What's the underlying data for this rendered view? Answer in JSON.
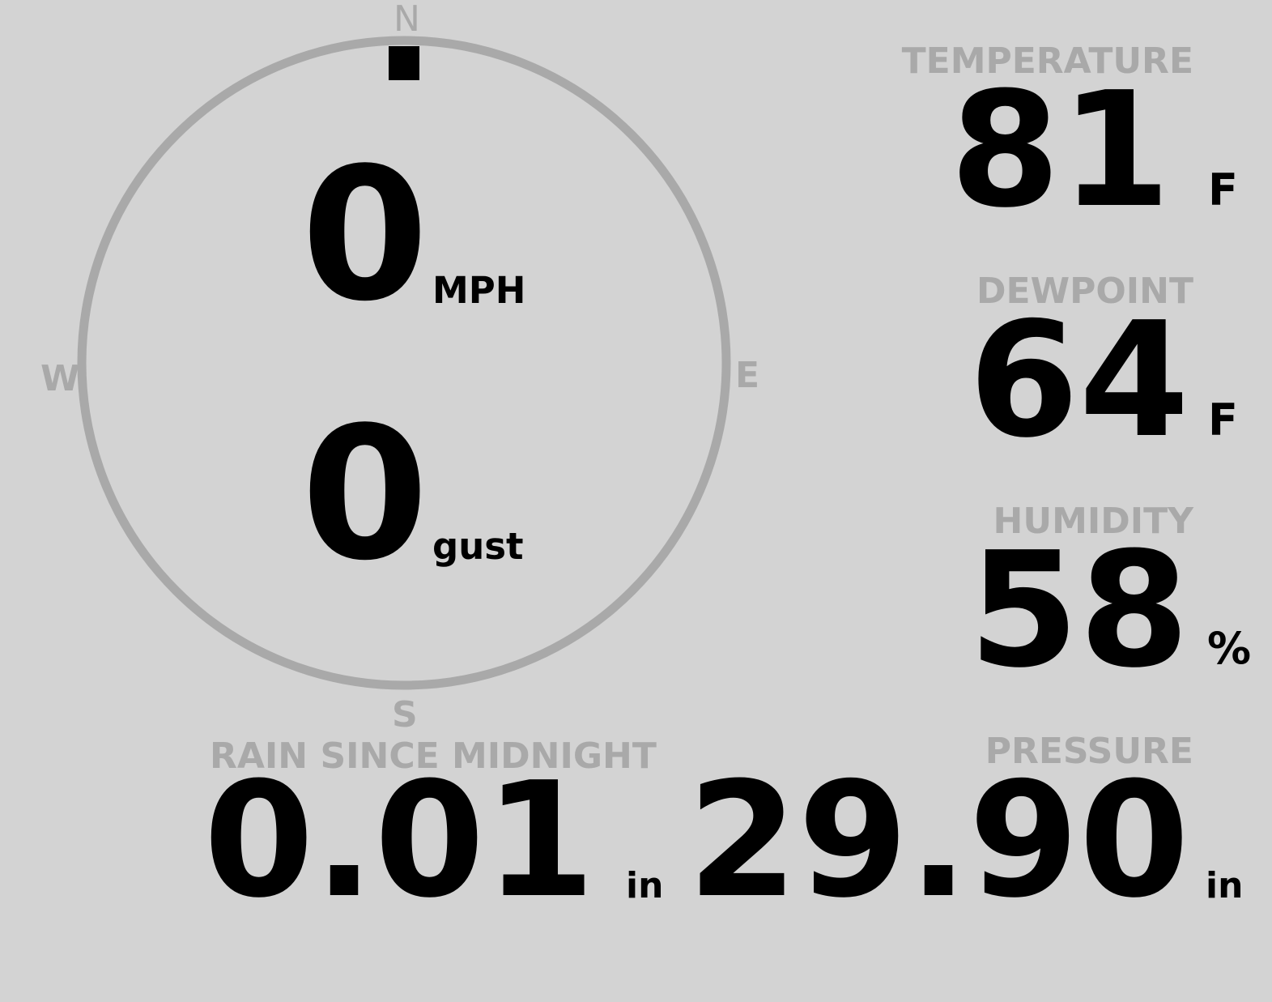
{
  "wind": {
    "speed": "0",
    "speed_unit": "MPH",
    "gust": "0",
    "gust_unit": "gust",
    "direction_deg": 0,
    "compass": {
      "n": "N",
      "e": "E",
      "s": "S",
      "w": "W"
    }
  },
  "rain": {
    "label": "RAIN SINCE MIDNIGHT",
    "value": "0.01",
    "unit": "in"
  },
  "temperature": {
    "label": "TEMPERATURE",
    "value": "81",
    "unit": "F"
  },
  "dewpoint": {
    "label": "DEWPOINT",
    "value": "64",
    "unit": "F"
  },
  "humidity": {
    "label": "HUMIDITY",
    "value": "58",
    "unit": "%"
  },
  "pressure": {
    "label": "PRESSURE",
    "value": "29.90",
    "unit": "in"
  },
  "colors": {
    "background": "#d3d3d3",
    "muted": "#a9a9a9",
    "value": "#000000"
  }
}
